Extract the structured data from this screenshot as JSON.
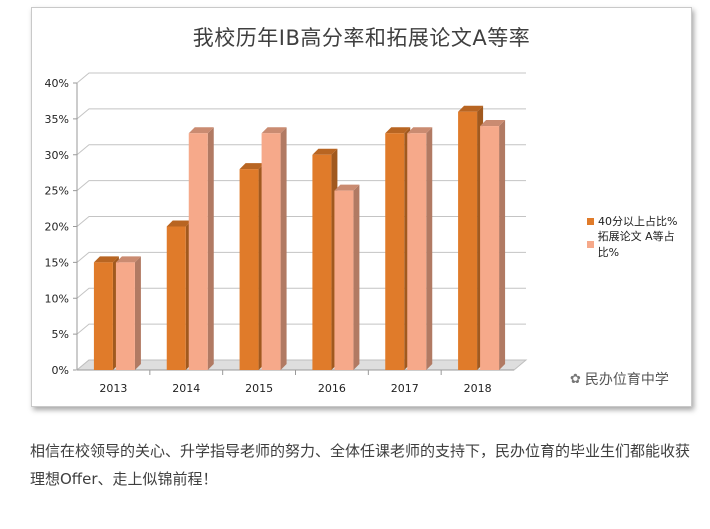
{
  "chart_data": {
    "type": "bar",
    "title": "我校历年IB高分率和拓展论文A等率",
    "categories": [
      "2013",
      "2014",
      "2015",
      "2016",
      "2017",
      "2018"
    ],
    "series": [
      {
        "name": "40分以上占比%",
        "values": [
          15,
          20,
          28,
          30,
          33,
          36
        ],
        "color": "#e07b2a"
      },
      {
        "name": "拓展论文 A等占比%",
        "values": [
          15,
          33,
          33,
          25,
          33,
          34
        ],
        "color": "#f6a98a"
      }
    ],
    "ylim": [
      0,
      40
    ],
    "yticks": [
      "0%",
      "5%",
      "10%",
      "15%",
      "20%",
      "25%",
      "30%",
      "35%",
      "40%"
    ],
    "grid": true,
    "legend_position": "right"
  },
  "watermark": {
    "text": "民办位育中学",
    "icon": "wechat-icon"
  },
  "body": {
    "text": "相信在校领导的关心、升学指导老师的努力、全体任课老师的支持下，民办位育的毕业生们都能收获理想Offer、走上似锦前程！"
  }
}
